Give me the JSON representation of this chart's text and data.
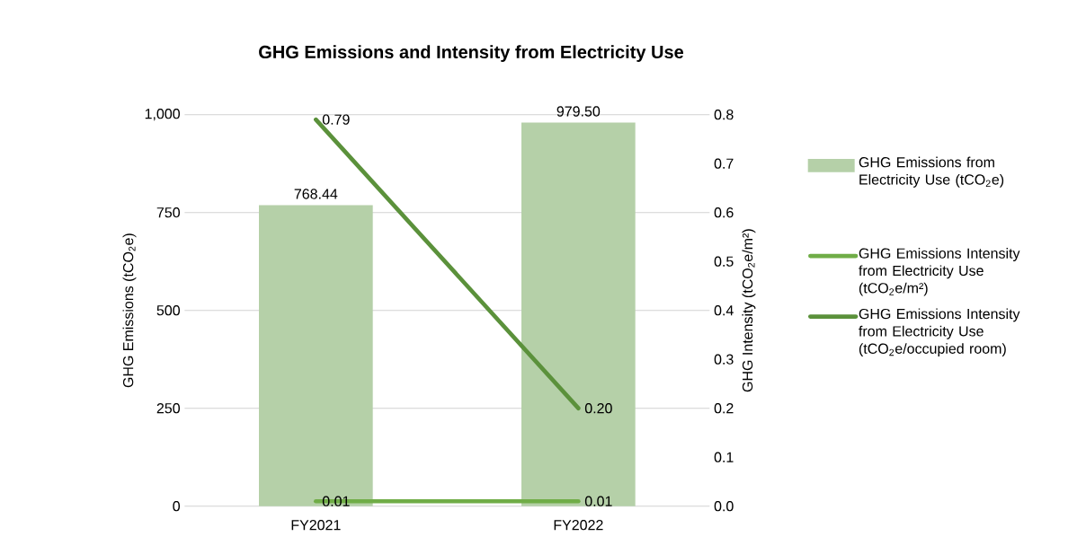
{
  "chart_data": {
    "type": "bar",
    "title": "GHG Emissions and Intensity from Electricity Use",
    "categories": [
      "FY2021",
      "FY2022"
    ],
    "ylabel": "GHG Emissions (tCO$_{2}$e)",
    "y2label": "GHG Intensity (tCO$_{2}$e/m²)",
    "ylim": [
      0,
      1000
    ],
    "yticks": [
      0,
      250,
      500,
      750,
      {
        "value": 1000,
        "label": "1,000"
      }
    ],
    "y2lim": [
      0,
      0.8
    ],
    "y2ticks": [
      {
        "value": 0,
        "label": "0.0"
      },
      0.1,
      0.2,
      0.3,
      0.4,
      0.5,
      0.6,
      0.7,
      0.8
    ],
    "grid": "y",
    "legend": "right",
    "marker": "none",
    "line_style": "solid",
    "series": [
      {
        "name": "GHG Emissions from Electricity Use (tCO$_{2}$e)",
        "color": "#b5d0a8",
        "values": [
          768.44,
          979.5
        ],
        "value_labels": [
          "768.44",
          "979.50"
        ]
      },
      {
        "name": "GHG Emissions Intensity from Electricity Use (tCO$_{2}$e/m²)",
        "type": "line",
        "axis": "y2",
        "color": "#70ad47",
        "values": [
          0.01,
          0.01
        ],
        "value_labels": [
          "0.01",
          "0.01"
        ]
      },
      {
        "name": "GHG Emissions Intensity from Electricity Use (tCO$_{2}$e/occupied room)",
        "type": "line",
        "axis": "y2",
        "color": "#5b913b",
        "values": [
          0.79,
          0.2
        ],
        "value_labels": [
          "0.79",
          "0.20"
        ]
      }
    ]
  }
}
